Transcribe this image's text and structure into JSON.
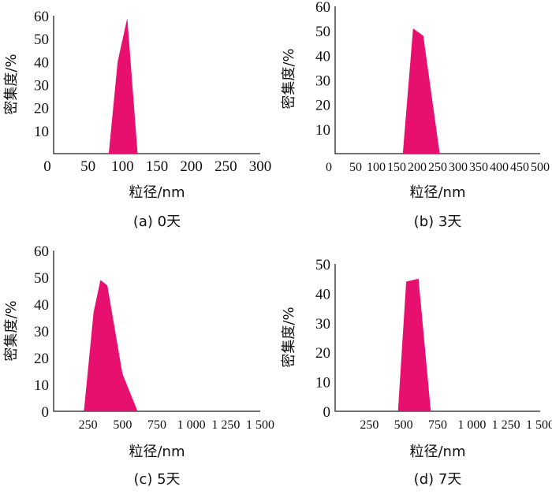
{
  "chart_data": [
    {
      "type": "area",
      "caption": "(a) 0天",
      "xlabel": "粒径/nm",
      "ylabel": "密集度/%",
      "xlim": [
        0,
        300
      ],
      "ylim": [
        0,
        60
      ],
      "x_ticks": [
        "0",
        "50",
        "100",
        "150",
        "200",
        "250",
        "300"
      ],
      "y_ticks": [
        "10",
        "20",
        "30",
        "40",
        "50",
        "60"
      ],
      "color": "#e8106f",
      "series": [
        {
          "x": [
            80,
            93,
            107,
            122
          ],
          "y": [
            0,
            40,
            59,
            0
          ]
        }
      ]
    },
    {
      "type": "area",
      "caption": "(b) 3天",
      "xlabel": "粒径/nm",
      "ylabel": "密集度/%",
      "xlim": [
        0,
        500
      ],
      "ylim": [
        0,
        60
      ],
      "x_ticks": [
        "0",
        "50",
        "100",
        "150",
        "200",
        "250",
        "300",
        "350",
        "400",
        "450",
        "500"
      ],
      "y_ticks": [
        "10",
        "20",
        "30",
        "40",
        "50",
        "60"
      ],
      "color": "#e8106f",
      "series": [
        {
          "x": [
            165,
            190,
            215,
            255
          ],
          "y": [
            0,
            51,
            48,
            0
          ]
        }
      ]
    },
    {
      "type": "area",
      "caption": "(c) 5天",
      "xlabel": "粒径/nm",
      "ylabel": "密集度/%",
      "xlim": [
        0,
        1500
      ],
      "ylim": [
        0,
        60
      ],
      "x_ticks": [
        "250",
        "500",
        "750",
        "1 000",
        "1 250",
        "1 500"
      ],
      "y_ticks": [
        "0",
        "10",
        "20",
        "30",
        "40",
        "50",
        "60"
      ],
      "color": "#e8106f",
      "series": [
        {
          "x": [
            220,
            290,
            340,
            390,
            500,
            610
          ],
          "y": [
            0,
            37,
            49,
            47,
            14,
            0
          ]
        }
      ]
    },
    {
      "type": "area",
      "caption": "(d) 7天",
      "xlabel": "粒径/nm",
      "ylabel": "密集度/%",
      "xlim": [
        0,
        1500
      ],
      "ylim": [
        0,
        50
      ],
      "x_ticks": [
        "250",
        "500",
        "750",
        "1 000",
        "1 250",
        "1 500"
      ],
      "y_ticks": [
        "0",
        "10",
        "20",
        "30",
        "40",
        "50"
      ],
      "color": "#e8106f",
      "series": [
        {
          "x": [
            460,
            520,
            610,
            700
          ],
          "y": [
            0,
            44,
            45,
            0
          ]
        }
      ]
    }
  ]
}
